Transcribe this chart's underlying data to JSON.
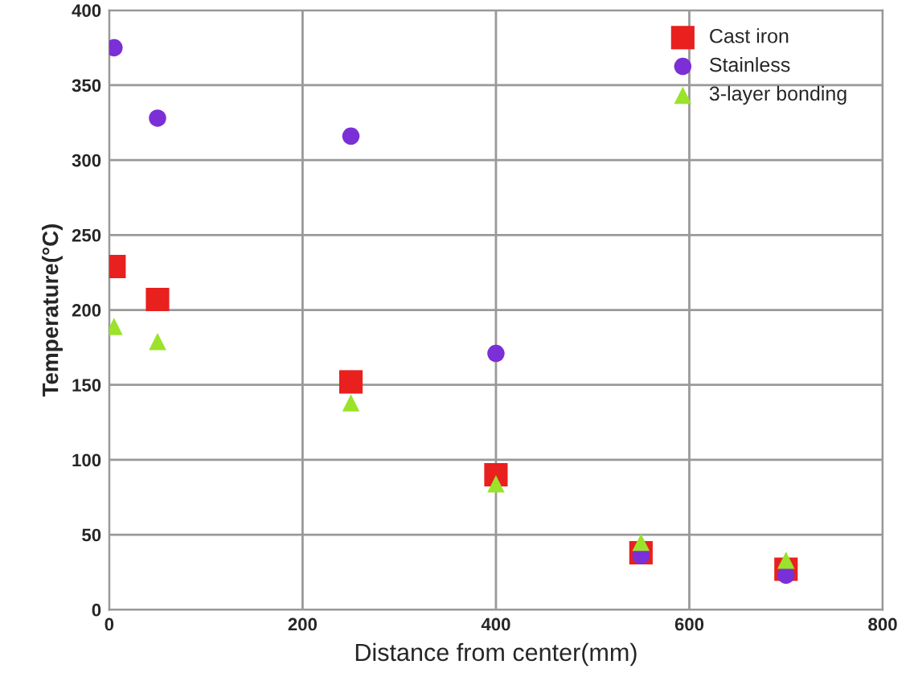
{
  "chart_data": {
    "type": "scatter",
    "xlabel": "Distance from center(mm)",
    "ylabel": "Temperature(°C)",
    "xlim": [
      0,
      800
    ],
    "xticks": [
      0,
      200,
      400,
      600,
      800
    ],
    "ylim": [
      0,
      400
    ],
    "yticks": [
      0,
      50,
      100,
      150,
      200,
      250,
      300,
      350,
      400
    ],
    "grid": true,
    "legend": "top right",
    "series": [
      {
        "name": "Cast iron",
        "color": "#e8201e",
        "marker": "square",
        "x": [
          5,
          50,
          250,
          400,
          550,
          700
        ],
        "values": [
          229,
          207,
          152,
          90,
          38,
          27
        ]
      },
      {
        "name": "Stainless",
        "color": "#7b2fd6",
        "marker": "circle",
        "x": [
          5,
          50,
          250,
          400,
          550,
          700
        ],
        "values": [
          375,
          328,
          316,
          171,
          36,
          23
        ]
      },
      {
        "name": "3-layer bonding",
        "color": "#9be22a",
        "marker": "triangle",
        "x": [
          5,
          50,
          250,
          400,
          550,
          700
        ],
        "values": [
          189,
          179,
          138,
          84,
          45,
          33
        ]
      }
    ]
  }
}
